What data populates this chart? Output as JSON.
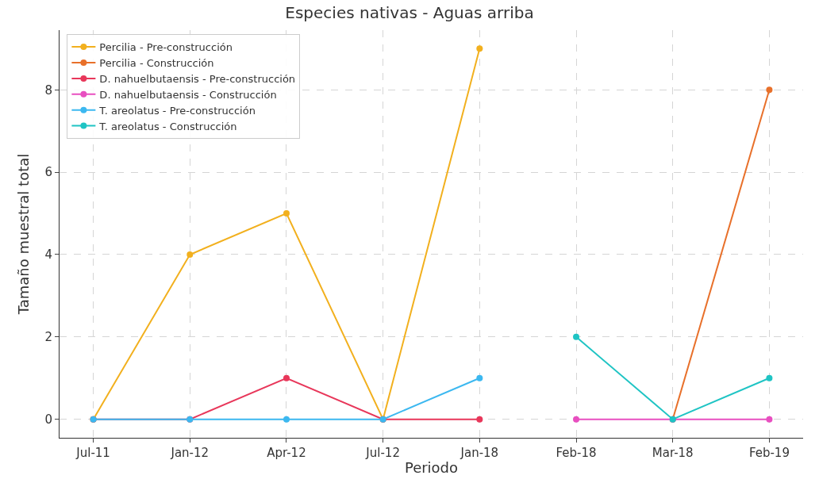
{
  "chart_data": {
    "type": "line",
    "title": "Especies nativas - Aguas arriba",
    "xlabel": "Periodo",
    "ylabel": "Tamaño muestral total",
    "categories": [
      "Jul-11",
      "Jan-12",
      "Apr-12",
      "Jul-12",
      "Jan-18",
      "Feb-18",
      "Mar-18",
      "Feb-19"
    ],
    "series": [
      {
        "name": "Percilia - Pre-construcción",
        "color": "#f2b01e",
        "values": [
          0,
          4,
          5,
          0,
          9,
          null,
          null,
          null
        ]
      },
      {
        "name": "Percilia - Construcción",
        "color": "#e8702a",
        "values": [
          null,
          null,
          null,
          null,
          null,
          null,
          0,
          8
        ]
      },
      {
        "name": "D. nahuelbutaensis - Pre-construcción",
        "color": "#e8375a",
        "values": [
          0,
          0,
          1,
          0,
          0,
          null,
          null,
          null
        ]
      },
      {
        "name": "D. nahuelbutaensis - Construcción",
        "color": "#e84fc0",
        "values": [
          null,
          null,
          null,
          null,
          null,
          0,
          0,
          0
        ]
      },
      {
        "name": "T. areolatus - Pre-construcción",
        "color": "#3cb8f0",
        "values": [
          0,
          0,
          0,
          0,
          1,
          null,
          null,
          null
        ]
      },
      {
        "name": "T. areolatus - Construcción",
        "color": "#1fc4c4",
        "values": [
          null,
          null,
          null,
          null,
          null,
          2,
          0,
          1
        ]
      }
    ],
    "ylim": [
      -0.45,
      9.45
    ],
    "yticks": [
      0,
      2,
      4,
      6,
      8
    ],
    "grid": true,
    "legend": "top left",
    "marker": "circle",
    "line_style": "solid"
  }
}
